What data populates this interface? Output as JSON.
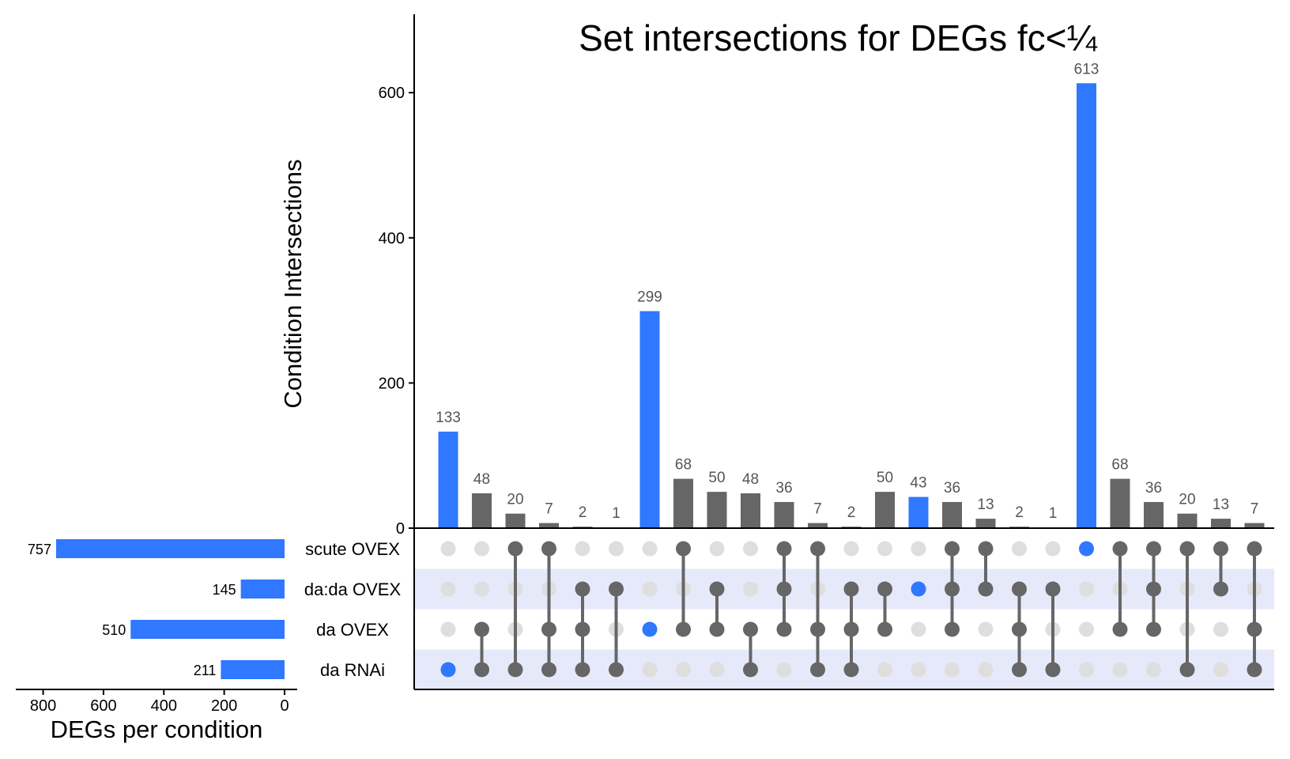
{
  "chart_data": {
    "type": "bar",
    "title": "Set intersections for DEGs fc<¼",
    "ylabel": "Condition Intersections",
    "ylim": [
      0,
      700
    ],
    "yticks": [
      0,
      200,
      400,
      600
    ],
    "sets": [
      "scute OVEX",
      "da:da OVEX",
      "da OVEX",
      "da RNAi"
    ],
    "set_sizes": [
      757,
      145,
      510,
      211
    ],
    "set_size_xlabel": "DEGs per condition",
    "set_size_xticks": [
      800,
      600,
      400,
      200,
      0
    ],
    "set_size_xlim": [
      0,
      850
    ],
    "intersections": [
      {
        "sets": [
          "da RNAi"
        ],
        "value": 133,
        "highlight": true
      },
      {
        "sets": [
          "da OVEX",
          "da RNAi"
        ],
        "value": 48,
        "highlight": false
      },
      {
        "sets": [
          "scute OVEX",
          "da RNAi"
        ],
        "value": 20,
        "highlight": false
      },
      {
        "sets": [
          "scute OVEX",
          "da OVEX",
          "da RNAi"
        ],
        "value": 7,
        "highlight": false
      },
      {
        "sets": [
          "da:da OVEX",
          "da OVEX",
          "da RNAi"
        ],
        "value": 2,
        "highlight": false
      },
      {
        "sets": [
          "da:da OVEX",
          "da RNAi"
        ],
        "value": 1,
        "highlight": false
      },
      {
        "sets": [
          "da OVEX"
        ],
        "value": 299,
        "highlight": true
      },
      {
        "sets": [
          "scute OVEX",
          "da OVEX"
        ],
        "value": 68,
        "highlight": false
      },
      {
        "sets": [
          "da:da OVEX",
          "da OVEX"
        ],
        "value": 50,
        "highlight": false
      },
      {
        "sets": [
          "da OVEX",
          "da RNAi"
        ],
        "value": 48,
        "highlight": false
      },
      {
        "sets": [
          "scute OVEX",
          "da:da OVEX",
          "da OVEX"
        ],
        "value": 36,
        "highlight": false
      },
      {
        "sets": [
          "scute OVEX",
          "da OVEX",
          "da RNAi"
        ],
        "value": 7,
        "highlight": false
      },
      {
        "sets": [
          "da:da OVEX",
          "da OVEX",
          "da RNAi"
        ],
        "value": 2,
        "highlight": false
      },
      {
        "sets": [
          "da:da OVEX",
          "da OVEX"
        ],
        "value": 50,
        "highlight": false
      },
      {
        "sets": [
          "da:da OVEX"
        ],
        "value": 43,
        "highlight": true
      },
      {
        "sets": [
          "scute OVEX",
          "da:da OVEX",
          "da OVEX"
        ],
        "value": 36,
        "highlight": false
      },
      {
        "sets": [
          "scute OVEX",
          "da:da OVEX"
        ],
        "value": 13,
        "highlight": false
      },
      {
        "sets": [
          "da:da OVEX",
          "da OVEX",
          "da RNAi"
        ],
        "value": 2,
        "highlight": false
      },
      {
        "sets": [
          "da:da OVEX",
          "da RNAi"
        ],
        "value": 1,
        "highlight": false
      },
      {
        "sets": [
          "scute OVEX"
        ],
        "value": 613,
        "highlight": true
      },
      {
        "sets": [
          "scute OVEX",
          "da OVEX"
        ],
        "value": 68,
        "highlight": false
      },
      {
        "sets": [
          "scute OVEX",
          "da:da OVEX",
          "da OVEX"
        ],
        "value": 36,
        "highlight": false
      },
      {
        "sets": [
          "scute OVEX",
          "da RNAi"
        ],
        "value": 20,
        "highlight": false
      },
      {
        "sets": [
          "scute OVEX",
          "da:da OVEX"
        ],
        "value": 13,
        "highlight": false
      },
      {
        "sets": [
          "scute OVEX",
          "da OVEX",
          "da RNAi"
        ],
        "value": 7,
        "highlight": false
      }
    ]
  },
  "colors": {
    "highlight": "#2f78ff",
    "bar": "#666666",
    "dot_inactive": "#dedede",
    "dot_active": "#666666",
    "stripe": "#e6e9fa",
    "axis": "#000000",
    "value_label": "#555555"
  }
}
